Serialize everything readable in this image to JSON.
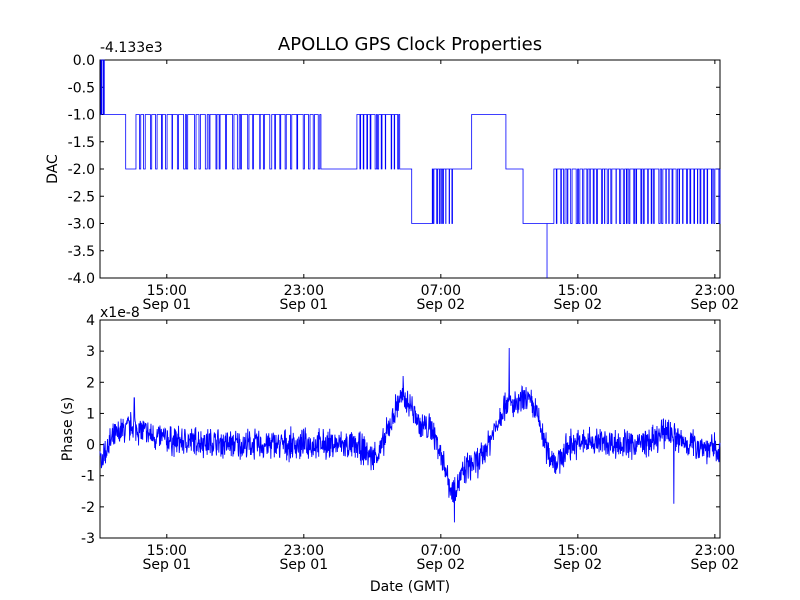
{
  "title": "APOLLO GPS Clock Properties",
  "colors": {
    "line": "#0000ff",
    "axes": "#000000",
    "background": "#ffffff"
  },
  "chart_data": [
    {
      "type": "line",
      "name": "dac",
      "ylabel": "DAC",
      "xlabel": "",
      "offset_text": "-4.133e3",
      "ylim": [
        -4.0,
        0.0
      ],
      "yticks": [
        0.0,
        -0.5,
        -1.0,
        -1.5,
        -2.0,
        -2.5,
        -3.0,
        -3.5,
        -4.0
      ],
      "ytick_labels": [
        "0.0",
        "-0.5",
        "-1.0",
        "-1.5",
        "-2.0",
        "-2.5",
        "-3.0",
        "-3.5",
        "-4.0"
      ],
      "xlim_hours": [
        11.1,
        47.3
      ],
      "xticks_hours": [
        15,
        23,
        31,
        39,
        47
      ],
      "xtick_labels": [
        [
          "15:00",
          "Sep 01"
        ],
        [
          "23:00",
          "Sep 01"
        ],
        [
          "07:00",
          "Sep 02"
        ],
        [
          "15:00",
          "Sep 02"
        ],
        [
          "23:00",
          "Sep 02"
        ]
      ],
      "series": [
        {
          "name": "DAC",
          "description": "step series; [start_hour, end_hour, level, toggle_to_level, toggle_count]",
          "segments": [
            [
              11.1,
              11.15,
              -1,
              -1,
              0
            ],
            [
              11.15,
              11.35,
              0,
              -1,
              2
            ],
            [
              11.35,
              12.6,
              -1,
              -1,
              0
            ],
            [
              12.6,
              13.2,
              -2,
              -2,
              0
            ],
            [
              13.2,
              24.0,
              -1,
              -2,
              34
            ],
            [
              24.0,
              26.1,
              -2,
              -2,
              0
            ],
            [
              26.1,
              28.6,
              -1,
              -2,
              11
            ],
            [
              28.6,
              29.3,
              -2,
              -2,
              0
            ],
            [
              29.3,
              30.5,
              -3,
              -3,
              0
            ],
            [
              30.5,
              31.7,
              -2,
              -3,
              8
            ],
            [
              31.7,
              32.8,
              -2,
              -2,
              0
            ],
            [
              32.8,
              34.8,
              -1,
              -1,
              0
            ],
            [
              34.8,
              35.8,
              -2,
              -2,
              0
            ],
            [
              35.8,
              37.2,
              -3,
              -3,
              0
            ],
            [
              37.2,
              37.2,
              -4,
              -4,
              0
            ],
            [
              37.2,
              37.6,
              -3,
              -3,
              0
            ],
            [
              37.6,
              39.0,
              -2,
              -3,
              6
            ],
            [
              39.0,
              47.3,
              -2,
              -3,
              40
            ]
          ]
        }
      ]
    },
    {
      "type": "line",
      "name": "phase",
      "ylabel": "Phase (s)",
      "xlabel": "Date (GMT)",
      "offset_text": "x1e-8",
      "ylim": [
        -3,
        4
      ],
      "yticks": [
        4,
        3,
        2,
        1,
        0,
        -1,
        -2,
        -3
      ],
      "ytick_labels": [
        "4",
        "3",
        "2",
        "1",
        "0",
        "-1",
        "-2",
        "-3"
      ],
      "xlim_hours": [
        11.1,
        47.3
      ],
      "xticks_hours": [
        15,
        23,
        31,
        39,
        47
      ],
      "xtick_labels": [
        [
          "15:00",
          "Sep 01"
        ],
        [
          "23:00",
          "Sep 01"
        ],
        [
          "07:00",
          "Sep 02"
        ],
        [
          "15:00",
          "Sep 02"
        ],
        [
          "23:00",
          "Sep 02"
        ]
      ],
      "series": [
        {
          "name": "Phase",
          "description": "noisy trace; envelope of mean [hour, mean] plus noise amplitude and spikes",
          "mean_curve": [
            [
              11.1,
              -0.6
            ],
            [
              11.6,
              0.0
            ],
            [
              12.3,
              0.4
            ],
            [
              13.0,
              0.6
            ],
            [
              14.0,
              0.3
            ],
            [
              15.5,
              0.1
            ],
            [
              17.0,
              0.1
            ],
            [
              19.0,
              0.0
            ],
            [
              21.0,
              0.0
            ],
            [
              23.0,
              0.0
            ],
            [
              25.0,
              0.0
            ],
            [
              26.3,
              -0.1
            ],
            [
              27.0,
              -0.4
            ],
            [
              27.5,
              -0.2
            ],
            [
              28.0,
              0.6
            ],
            [
              28.6,
              1.5
            ],
            [
              29.2,
              1.3
            ],
            [
              29.8,
              0.6
            ],
            [
              30.5,
              0.5
            ],
            [
              31.2,
              -0.6
            ],
            [
              31.6,
              -1.5
            ],
            [
              32.0,
              -1.2
            ],
            [
              32.6,
              -0.7
            ],
            [
              33.3,
              -0.5
            ],
            [
              34.0,
              0.3
            ],
            [
              34.8,
              1.4
            ],
            [
              35.4,
              1.2
            ],
            [
              36.0,
              1.5
            ],
            [
              36.6,
              1.0
            ],
            [
              37.2,
              -0.2
            ],
            [
              37.8,
              -0.6
            ],
            [
              38.5,
              0.0
            ],
            [
              40.0,
              0.1
            ],
            [
              42.0,
              0.0
            ],
            [
              43.5,
              0.1
            ],
            [
              44.2,
              0.5
            ],
            [
              45.0,
              0.1
            ],
            [
              46.0,
              0.0
            ],
            [
              47.3,
              -0.2
            ]
          ],
          "noise_amplitude": 0.45,
          "spikes": [
            [
              35.0,
              3.1
            ],
            [
              31.8,
              -2.5
            ],
            [
              44.6,
              -1.9
            ],
            [
              13.1,
              1.5
            ],
            [
              28.8,
              2.2
            ]
          ]
        }
      ]
    }
  ]
}
